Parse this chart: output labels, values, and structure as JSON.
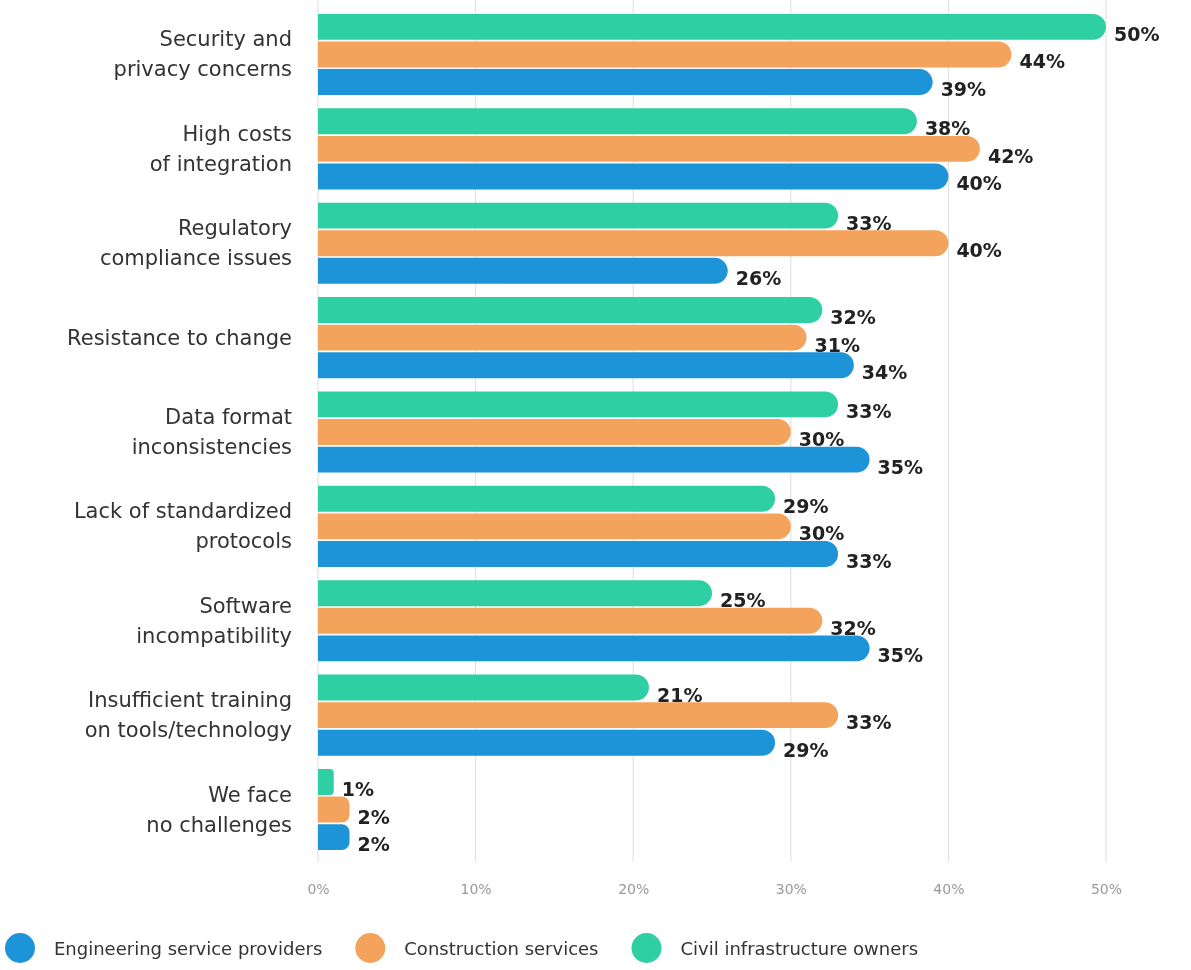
{
  "chart_data": {
    "type": "bar",
    "orientation": "horizontal",
    "grid": "x",
    "legend": "bottom",
    "categories": [
      "Security and\nprivacy concerns",
      "High costs\nof integration",
      "Regulatory\ncompliance issues",
      "Resistance to change",
      "Data format\ninconsistencies",
      "Lack of standardized\nprotocols",
      "Software\nincompatibility",
      "Insufficient training\non tools/technology",
      "We face\nno challenges"
    ],
    "xlim": [
      0,
      50
    ],
    "xticks": [
      {
        "value": 0,
        "label": "0%"
      },
      {
        "value": 10,
        "label": "10%"
      },
      {
        "value": 20,
        "label": "20%"
      },
      {
        "value": 30,
        "label": "30%"
      },
      {
        "value": 40,
        "label": "40%"
      },
      {
        "value": 50,
        "label": "50%"
      }
    ],
    "series": [
      {
        "name": "Engineering service providers",
        "color": "#1e94d8",
        "values": [
          39,
          40,
          26,
          34,
          35,
          33,
          35,
          29,
          2
        ],
        "value_labels": [
          "39%",
          "40%",
          "26%",
          "34%",
          "35%",
          "33%",
          "35%",
          "29%",
          "2%"
        ]
      },
      {
        "name": "Construction services",
        "color": "#f4a35c",
        "values": [
          44,
          42,
          40,
          31,
          30,
          30,
          32,
          33,
          2
        ],
        "value_labels": [
          "44%",
          "42%",
          "40%",
          "31%",
          "30%",
          "30%",
          "32%",
          "33%",
          "2%"
        ]
      },
      {
        "name": "Civil infrastructure owners",
        "color": "#2dcfa3",
        "values": [
          50,
          38,
          33,
          32,
          33,
          29,
          25,
          21,
          1
        ],
        "value_labels": [
          "50%",
          "38%",
          "33%",
          "32%",
          "33%",
          "29%",
          "25%",
          "21%",
          "1%"
        ]
      }
    ]
  }
}
